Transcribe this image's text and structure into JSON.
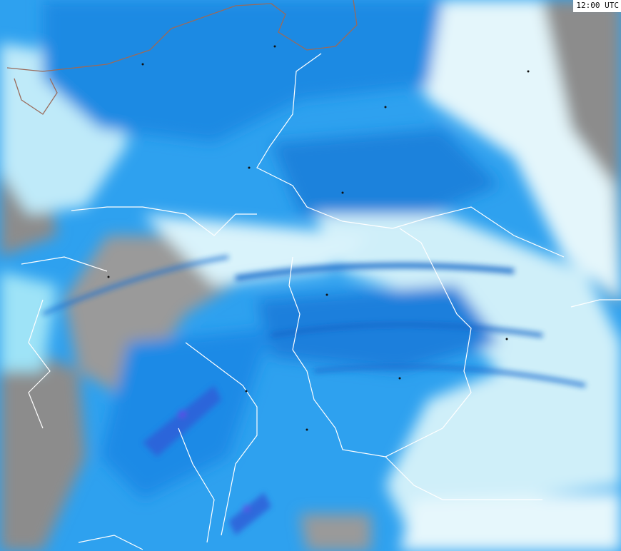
{
  "map": {
    "time_label": "12:00 UTC",
    "colors": {
      "no_data": "#8c8c8c",
      "light": "#e4f6fb",
      "cyan": "#7fdcf5",
      "mid_blue": "#2ea1ef",
      "blue": "#1a85e0",
      "deep_blue": "#2f5fd8",
      "violet": "#6a38e8",
      "border": "#ffffff",
      "coast": "#9a6a5a"
    }
  }
}
